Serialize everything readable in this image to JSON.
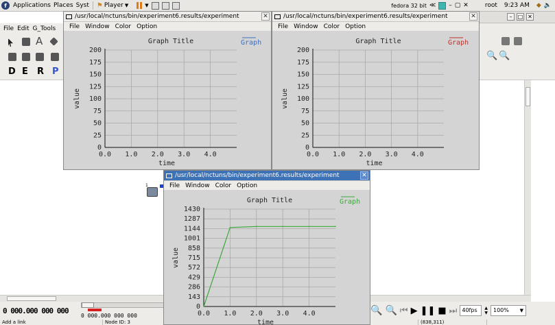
{
  "top_panel": {
    "applications": "Applications",
    "places": "Places",
    "system": "Syst",
    "player": "Player",
    "vm_name": "fedora 32 bit",
    "user": "root",
    "clock": "9:23 AM"
  },
  "bg_menu": {
    "file": "File",
    "edit": "Edit",
    "g_tools": "G_Tools"
  },
  "modes": [
    "D",
    "E",
    "R",
    "P"
  ],
  "bottom": {
    "lcd": "0 000.000 000 000",
    "time": "0 000.000 000 000",
    "status_left": "Add a link",
    "status_node": "Node ID: 3",
    "status_coords": "(838,311)",
    "fps": "40fps",
    "zoom": "100%"
  },
  "windows": [
    {
      "title": "/usr/local/nctuns/bin/experiment6.results/experiment",
      "menu": [
        "File",
        "Window",
        "Color",
        "Option"
      ],
      "active": false
    },
    {
      "title": "/usr/local/nctuns/bin/experiment6.results/experiment",
      "menu": [
        "File",
        "Window",
        "Color",
        "Option"
      ],
      "active": false
    },
    {
      "title": "/usr/local/nctuns/bin/experiment6.results/experiment",
      "menu": [
        "File",
        "Window",
        "Color",
        "Option"
      ],
      "active": true
    }
  ],
  "chart_data": [
    {
      "type": "line",
      "title": "Graph Title",
      "xlabel": "time",
      "ylabel": "value",
      "xlim": [
        0,
        5
      ],
      "ylim": [
        0,
        200
      ],
      "x_ticks": [
        "0.0",
        "1.0",
        "2.0",
        "3.0",
        "4.0"
      ],
      "y_ticks": [
        "0",
        "25",
        "50",
        "75",
        "100",
        "125",
        "150",
        "175",
        "200"
      ],
      "legend_position": "top-right",
      "series": [
        {
          "name": "Graph",
          "color": "#3a6fc0",
          "x": [],
          "y": []
        }
      ]
    },
    {
      "type": "line",
      "title": "Graph Title",
      "xlabel": "time",
      "ylabel": "value",
      "xlim": [
        0,
        5
      ],
      "ylim": [
        0,
        200
      ],
      "x_ticks": [
        "0.0",
        "1.0",
        "2.0",
        "3.0",
        "4.0"
      ],
      "y_ticks": [
        "0",
        "25",
        "50",
        "75",
        "100",
        "125",
        "150",
        "175",
        "200"
      ],
      "legend_position": "top-right",
      "series": [
        {
          "name": "Graph",
          "color": "#c0302a",
          "x": [],
          "y": []
        }
      ]
    },
    {
      "type": "line",
      "title": "Graph Title",
      "xlabel": "time",
      "ylabel": "value",
      "xlim": [
        0,
        5
      ],
      "ylim": [
        0,
        1430
      ],
      "x_ticks": [
        "0.0",
        "1.0",
        "2.0",
        "3.0",
        "4.0"
      ],
      "y_ticks": [
        "0",
        "143",
        "286",
        "429",
        "572",
        "715",
        "858",
        "1001",
        "1144",
        "1287",
        "1430"
      ],
      "legend_position": "top-right",
      "series": [
        {
          "name": "Graph",
          "color": "#39a83a",
          "x": [
            0.0,
            1.0,
            2.0,
            3.0,
            4.0,
            5.0
          ],
          "y": [
            0,
            1160,
            1175,
            1175,
            1175,
            1175
          ]
        }
      ]
    }
  ]
}
